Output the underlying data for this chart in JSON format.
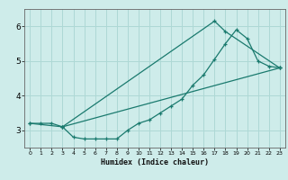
{
  "xlabel": "Humidex (Indice chaleur)",
  "bg_color": "#ceecea",
  "grid_color": "#aed8d5",
  "line_color": "#1a7a6e",
  "xlim": [
    -0.5,
    23.5
  ],
  "ylim": [
    2.5,
    6.5
  ],
  "xticks": [
    0,
    1,
    2,
    3,
    4,
    5,
    6,
    7,
    8,
    9,
    10,
    11,
    12,
    13,
    14,
    15,
    16,
    17,
    18,
    19,
    20,
    21,
    22,
    23
  ],
  "yticks": [
    3,
    4,
    5,
    6
  ],
  "line1_x": [
    0,
    1,
    2,
    3,
    4,
    5,
    6,
    7,
    8,
    9,
    10,
    11,
    12,
    13,
    14,
    15,
    16,
    17,
    18,
    19,
    20,
    21,
    22,
    23
  ],
  "line1_y": [
    3.2,
    3.2,
    3.2,
    3.1,
    2.8,
    2.75,
    2.75,
    2.75,
    2.75,
    3.0,
    3.2,
    3.3,
    3.5,
    3.7,
    3.9,
    4.3,
    4.6,
    5.05,
    5.5,
    5.9,
    5.65,
    5.0,
    4.85,
    4.8
  ],
  "line2_x": [
    0,
    3,
    17,
    18,
    23
  ],
  "line2_y": [
    3.2,
    3.1,
    6.15,
    5.85,
    4.8
  ],
  "line3_x": [
    3,
    23
  ],
  "line3_y": [
    3.1,
    4.8
  ]
}
